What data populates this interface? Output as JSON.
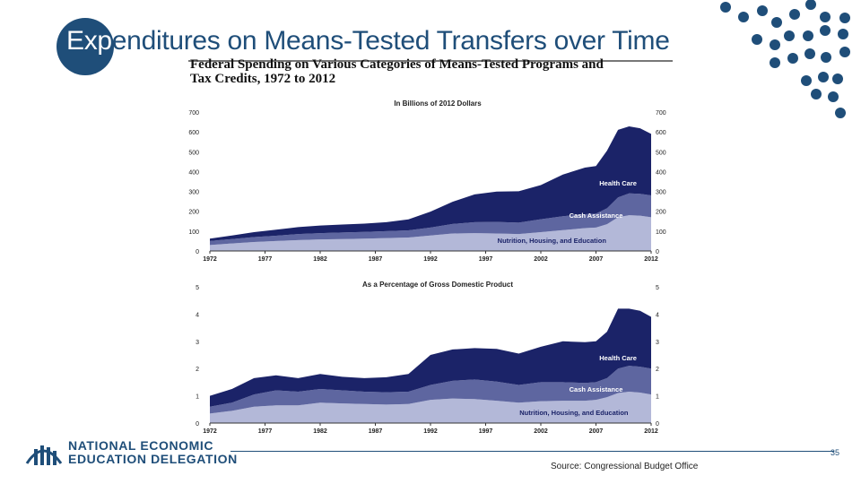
{
  "slide": {
    "title_first": "Exp",
    "title_rest": "enditures on Means-Tested Transfers over Time",
    "figure_title_line1": "Federal Spending on Various Categories of Means-Tested Programs and",
    "figure_title_line2": "Tax Credits, 1972 to 2012",
    "logo_line1": "NATIONAL ECONOMIC",
    "logo_line2": "EDUCATION DELEGATION",
    "source": "Source: Congressional Budget Office",
    "page_number": "35"
  },
  "colors": {
    "brand": "#1f4e79",
    "health_care": "#1b2368",
    "cash_assistance": "#5e66a0",
    "nutrition_housing_education": "#b3b8d8"
  },
  "chart_data": [
    {
      "type": "area",
      "stacked": true,
      "title": "In Billions of 2012 Dollars",
      "x": [
        1972,
        1974,
        1976,
        1978,
        1980,
        1982,
        1984,
        1986,
        1988,
        1990,
        1992,
        1994,
        1996,
        1998,
        2000,
        2002,
        2004,
        2006,
        2007,
        2008,
        2009,
        2010,
        2011,
        2012
      ],
      "xticks": [
        "1972",
        "1977",
        "1982",
        "1987",
        "1992",
        "1997",
        "2002",
        "2007",
        "2012"
      ],
      "yticks": [
        "0",
        "100",
        "200",
        "300",
        "400",
        "500",
        "600",
        "700"
      ],
      "ylim": [
        0,
        700
      ],
      "series": [
        {
          "name": "Nutrition, Housing, and Education",
          "values": [
            30,
            38,
            45,
            50,
            55,
            58,
            60,
            62,
            65,
            68,
            78,
            88,
            90,
            88,
            85,
            95,
            105,
            115,
            118,
            135,
            170,
            180,
            178,
            170
          ]
        },
        {
          "name": "Cash Assistance",
          "values": [
            20,
            22,
            25,
            27,
            30,
            32,
            33,
            34,
            35,
            36,
            40,
            48,
            55,
            58,
            58,
            65,
            70,
            70,
            70,
            80,
            100,
            110,
            110,
            110
          ]
        },
        {
          "name": "Health Care",
          "values": [
            12,
            18,
            25,
            30,
            35,
            38,
            40,
            42,
            45,
            55,
            80,
            112,
            140,
            153,
            158,
            172,
            210,
            235,
            240,
            290,
            340,
            338,
            330,
            310
          ]
        }
      ],
      "labels": [
        "Health Care",
        "Cash Assistance",
        "Nutrition, Housing, and Education"
      ]
    },
    {
      "type": "area",
      "stacked": true,
      "title": "As a Percentage of Gross Domestic Product",
      "x": [
        1972,
        1974,
        1976,
        1978,
        1980,
        1982,
        1984,
        1986,
        1988,
        1990,
        1992,
        1994,
        1996,
        1998,
        2000,
        2002,
        2004,
        2006,
        2007,
        2008,
        2009,
        2010,
        2011,
        2012
      ],
      "xticks": [
        "1972",
        "1977",
        "1982",
        "1987",
        "1992",
        "1997",
        "2002",
        "2007",
        "2012"
      ],
      "yticks": [
        "0",
        "1",
        "2",
        "3",
        "4",
        "5"
      ],
      "ylim": [
        0,
        5
      ],
      "series": [
        {
          "name": "Nutrition, Housing, and Education",
          "values": [
            0.35,
            0.45,
            0.6,
            0.65,
            0.65,
            0.75,
            0.72,
            0.7,
            0.68,
            0.7,
            0.85,
            0.9,
            0.88,
            0.82,
            0.75,
            0.8,
            0.82,
            0.82,
            0.85,
            0.95,
            1.1,
            1.15,
            1.12,
            1.05
          ]
        },
        {
          "name": "Cash Assistance",
          "values": [
            0.25,
            0.3,
            0.45,
            0.55,
            0.5,
            0.5,
            0.48,
            0.45,
            0.45,
            0.45,
            0.55,
            0.65,
            0.72,
            0.7,
            0.65,
            0.7,
            0.68,
            0.65,
            0.65,
            0.7,
            0.9,
            0.95,
            0.95,
            0.95
          ]
        },
        {
          "name": "Health Care",
          "values": [
            0.4,
            0.5,
            0.6,
            0.55,
            0.5,
            0.55,
            0.5,
            0.5,
            0.55,
            0.65,
            1.1,
            1.15,
            1.15,
            1.2,
            1.15,
            1.3,
            1.5,
            1.5,
            1.5,
            1.7,
            2.2,
            2.1,
            2.05,
            1.9
          ]
        }
      ],
      "labels": [
        "Health Care",
        "Cash Assistance",
        "Nutrition, Housing, and Education"
      ]
    }
  ]
}
